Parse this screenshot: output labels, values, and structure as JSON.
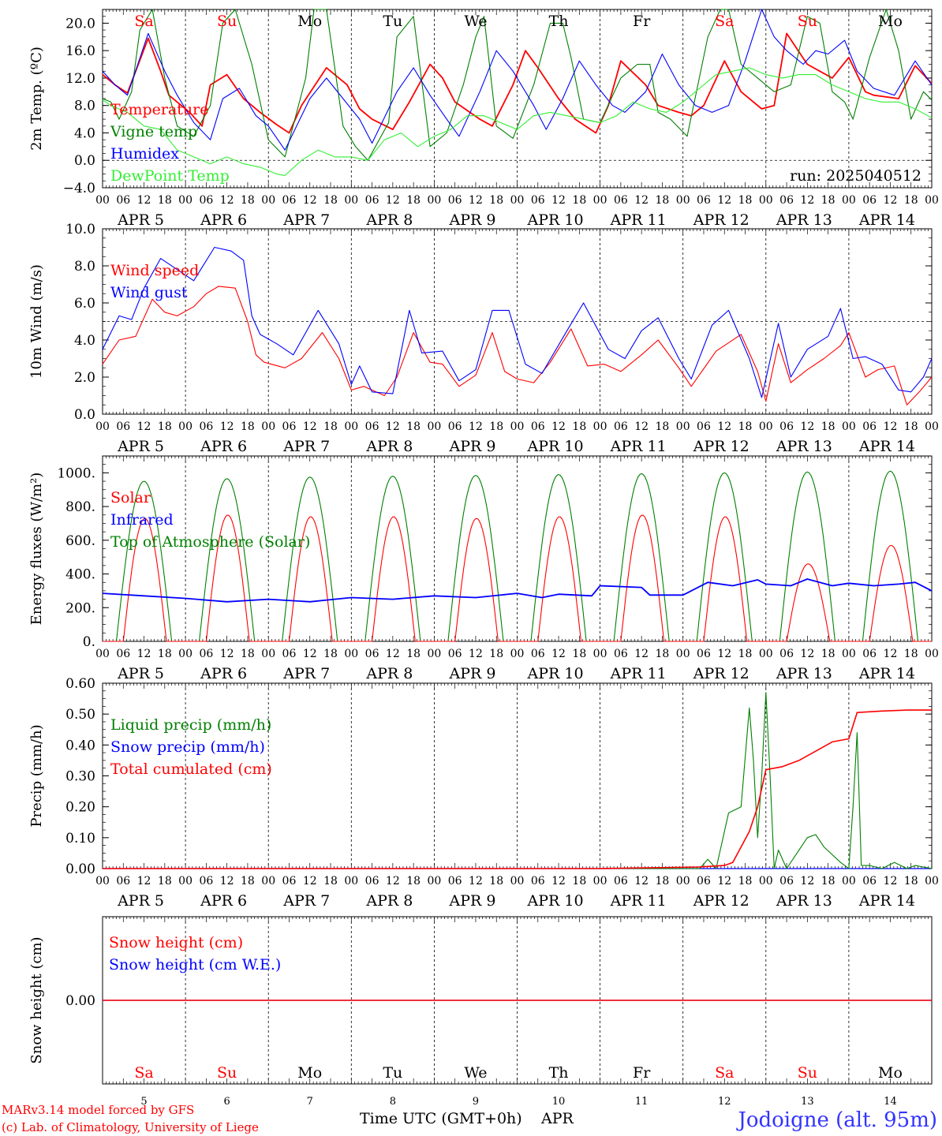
{
  "days": [
    "Sa",
    "Su",
    "Mo",
    "Tu",
    "We",
    "Th",
    "Fr",
    "Sa",
    "Su",
    "Mo"
  ],
  "weekend_flags": [
    true,
    true,
    false,
    false,
    false,
    false,
    false,
    true,
    true,
    false
  ],
  "dates": [
    "APR  5",
    "APR  6",
    "APR  7",
    "APR  8",
    "APR  9",
    "APR 10",
    "APR 11",
    "APR 12",
    "APR 13",
    "APR 14"
  ],
  "date_numbers": [
    "5",
    "6",
    "7",
    "8",
    "9",
    "10",
    "11",
    "12",
    "13",
    "14"
  ],
  "hour_labels": [
    "00",
    "06",
    "12",
    "18"
  ],
  "end_hour_label": "00",
  "run_label": "run: 2025040512",
  "bottom": {
    "model": "MARv3.14 model forced by GFS",
    "credit": "(c) Lab. of Climatology, University of Liege",
    "axis": "Time UTC (GMT+0h)",
    "month": "APR",
    "station": "Jodoigne (alt. 95m)"
  },
  "colors": {
    "red": "#ff0000",
    "green": "#008000",
    "blue": "#0000ff",
    "lightgreen": "#33ee33",
    "weekend": "#ff0000",
    "weekday": "#000000",
    "station": "#3333ff"
  },
  "chart_data": [
    {
      "type": "line",
      "ylabel": "2m Temp. (ºC)",
      "ylim": [
        -4,
        22
      ],
      "yticks": [
        "20.0",
        "16.0",
        "12.0",
        "8.0",
        "4.0",
        "0.0",
        "−4.0"
      ],
      "ytick_values": [
        20,
        16,
        12,
        8,
        4,
        0,
        -4
      ],
      "ref_line": 0,
      "x_days": [
        0,
        10
      ],
      "series": [
        {
          "name": "Temperature",
          "color": "red",
          "x": [
            0,
            0.15,
            0.3,
            0.55,
            0.7,
            0.8,
            1.05,
            1.2,
            1.3,
            1.5,
            1.7,
            1.9,
            2.1,
            2.25,
            2.4,
            2.7,
            2.95,
            3.1,
            3.25,
            3.5,
            3.7,
            3.95,
            4.1,
            4.25,
            4.55,
            4.7,
            4.95,
            5.1,
            5.25,
            5.5,
            5.7,
            5.95,
            6.1,
            6.25,
            6.55,
            6.7,
            6.95,
            7.1,
            7.25,
            7.5,
            7.7,
            7.95,
            8.1,
            8.25,
            8.5,
            8.8,
            9.0,
            9.2,
            9.3,
            9.6,
            9.8,
            10.0
          ],
          "y": [
            12.5,
            11,
            9.8,
            17.8,
            13,
            9.5,
            7,
            5,
            11,
            12.5,
            9,
            7,
            5.2,
            4,
            8,
            13.5,
            11,
            7.5,
            6,
            4.5,
            8.5,
            14,
            12,
            8.5,
            6,
            5,
            11,
            16,
            13.5,
            9,
            6,
            4,
            8,
            14.5,
            11,
            8,
            7,
            6.5,
            8,
            14.5,
            10,
            7.5,
            8,
            18.5,
            14,
            12,
            15,
            10,
            9.5,
            9,
            13.8,
            11.2
          ]
        },
        {
          "name": "Vigne temp",
          "color": "green",
          "x": [
            0,
            0.1,
            0.2,
            0.35,
            0.45,
            0.6,
            0.75,
            0.9,
            1.1,
            1.3,
            1.45,
            1.6,
            1.8,
            2.0,
            2.2,
            2.45,
            2.55,
            2.7,
            2.9,
            3.05,
            3.2,
            3.45,
            3.55,
            3.75,
            3.95,
            4.15,
            4.35,
            4.5,
            4.6,
            4.75,
            4.95,
            5.2,
            5.4,
            5.55,
            5.65,
            5.8,
            6.0,
            6.25,
            6.45,
            6.6,
            6.7,
            6.85,
            7.05,
            7.3,
            7.45,
            7.55,
            7.7,
            7.9,
            8.1,
            8.3,
            8.5,
            8.65,
            8.8,
            8.95,
            9.05,
            9.25,
            9.45,
            9.6,
            9.75,
            9.9,
            10.0
          ],
          "y": [
            9.0,
            8.5,
            6,
            10,
            19,
            22,
            12,
            5,
            3.5,
            8,
            20,
            24,
            14,
            3,
            0.5,
            12,
            22,
            26,
            5,
            2,
            0,
            5.5,
            18,
            21,
            2,
            4,
            11,
            18,
            21,
            5,
            3.2,
            11,
            20,
            20,
            15,
            6,
            5.5,
            12,
            14,
            14,
            7,
            6,
            3.5,
            18,
            23,
            24,
            14,
            12,
            10,
            11,
            21,
            20,
            10,
            8.5,
            6,
            15,
            22,
            16,
            6,
            10,
            8.8
          ]
        },
        {
          "name": "Humidex",
          "color": "blue",
          "x": [
            0,
            0.15,
            0.3,
            0.55,
            0.75,
            0.9,
            1.1,
            1.3,
            1.45,
            1.65,
            1.85,
            2.0,
            2.2,
            2.5,
            2.7,
            2.9,
            3.1,
            3.25,
            3.55,
            3.75,
            3.95,
            4.15,
            4.3,
            4.55,
            4.75,
            4.95,
            5.2,
            5.35,
            5.55,
            5.75,
            5.95,
            6.15,
            6.3,
            6.55,
            6.75,
            6.95,
            7.15,
            7.35,
            7.55,
            7.75,
            7.95,
            8.1,
            8.25,
            8.45,
            8.6,
            8.75,
            8.95,
            9.1,
            9.3,
            9.55,
            9.8,
            10.0
          ],
          "y": [
            13,
            11,
            9.5,
            18.5,
            13,
            9.5,
            5.5,
            3,
            9,
            10.5,
            6.5,
            5,
            1.5,
            9,
            12,
            9,
            6,
            2.5,
            10,
            13.5,
            9.5,
            6,
            3.5,
            10,
            16,
            13,
            8,
            4.5,
            9,
            14.5,
            11,
            8,
            7,
            10,
            15.5,
            11,
            8,
            7,
            8,
            14.5,
            22,
            18,
            16,
            14,
            16,
            15.5,
            17.5,
            13,
            10.5,
            9.5,
            14.5,
            11
          ]
        },
        {
          "name": "DewPoint Temp",
          "color": "lightgreen",
          "x": [
            0,
            0.1,
            0.3,
            0.5,
            0.7,
            0.9,
            1.1,
            1.3,
            1.5,
            1.7,
            1.9,
            2.1,
            2.2,
            2.4,
            2.6,
            2.8,
            3.0,
            3.2,
            3.4,
            3.6,
            3.8,
            4.0,
            4.2,
            4.4,
            4.6,
            4.8,
            5.0,
            5.2,
            5.4,
            5.6,
            5.8,
            6.0,
            6.2,
            6.4,
            6.6,
            6.8,
            7.0,
            7.2,
            7.4,
            7.6,
            7.8,
            8.0,
            8.2,
            8.4,
            8.6,
            8.8,
            9.0,
            9.2,
            9.4,
            9.6,
            9.8,
            10.0
          ],
          "y": [
            8.8,
            8.0,
            7.0,
            5.0,
            4.5,
            1.5,
            0.5,
            -0.5,
            0.5,
            -0.5,
            -1.0,
            -2.0,
            -2.2,
            0.0,
            1.5,
            0.5,
            0.5,
            0.0,
            3.0,
            4.0,
            2.0,
            3.5,
            4.5,
            6.5,
            6.5,
            5.5,
            4.5,
            6.5,
            7.0,
            6.5,
            6.0,
            5.5,
            6.5,
            8.5,
            7.5,
            7.0,
            8.5,
            10.5,
            12.5,
            13.0,
            13.5,
            12.5,
            12.0,
            12.5,
            12.5,
            11.0,
            10.0,
            9.0,
            8.5,
            8.5,
            7.5,
            6.2
          ]
        }
      ]
    },
    {
      "type": "line",
      "ylabel": "10m Wind (m/s)",
      "ylim": [
        0,
        10
      ],
      "yticks": [
        "10.0",
        "8.0",
        "6.0",
        "4.0",
        "2.0",
        "0.0"
      ],
      "ytick_values": [
        10,
        8,
        6,
        4,
        2,
        0
      ],
      "ref_line": 5,
      "x_days": [
        0,
        10
      ],
      "series": [
        {
          "name": "Wind speed",
          "color": "red",
          "x": [
            0,
            0.2,
            0.4,
            0.6,
            0.75,
            0.9,
            1.1,
            1.25,
            1.4,
            1.6,
            1.75,
            1.85,
            1.95,
            2.2,
            2.4,
            2.65,
            2.85,
            3.0,
            3.15,
            3.4,
            3.55,
            3.75,
            3.95,
            4.1,
            4.3,
            4.5,
            4.7,
            4.85,
            5.0,
            5.2,
            5.4,
            5.65,
            5.85,
            6.05,
            6.25,
            6.5,
            6.7,
            6.95,
            7.1,
            7.4,
            7.7,
            7.9,
            8.0,
            8.15,
            8.3,
            8.5,
            8.7,
            8.9,
            9.0,
            9.2,
            9.35,
            9.55,
            9.7,
            9.85,
            10.0
          ],
          "y": [
            2.7,
            4.0,
            4.2,
            6.2,
            5.5,
            5.3,
            5.8,
            6.5,
            6.9,
            6.8,
            5.0,
            3.2,
            2.8,
            2.5,
            3.0,
            4.4,
            3.0,
            1.3,
            1.5,
            1.0,
            2.0,
            4.4,
            2.8,
            2.7,
            1.5,
            2.1,
            4.4,
            2.3,
            1.9,
            1.7,
            2.8,
            4.6,
            2.6,
            2.7,
            2.3,
            3.2,
            4.0,
            2.5,
            1.5,
            3.4,
            4.3,
            2.3,
            0.7,
            3.8,
            1.7,
            2.4,
            3.0,
            3.7,
            4.4,
            2.0,
            2.4,
            2.6,
            0.5,
            1.2,
            2.0
          ]
        },
        {
          "name": "Wind gust",
          "color": "blue",
          "x": [
            0,
            0.2,
            0.35,
            0.5,
            0.7,
            0.9,
            1.1,
            1.35,
            1.55,
            1.7,
            1.8,
            1.9,
            2.1,
            2.3,
            2.6,
            2.85,
            3.0,
            3.1,
            3.25,
            3.5,
            3.7,
            3.85,
            4.1,
            4.3,
            4.5,
            4.7,
            4.9,
            5.1,
            5.3,
            5.6,
            5.8,
            6.1,
            6.3,
            6.5,
            6.7,
            6.95,
            7.1,
            7.35,
            7.55,
            7.8,
            7.95,
            8.15,
            8.3,
            8.5,
            8.75,
            8.9,
            9.05,
            9.2,
            9.4,
            9.6,
            9.75,
            9.9,
            10.0
          ],
          "y": [
            3.5,
            5.3,
            5.1,
            6.8,
            8.4,
            7.8,
            7.2,
            9.0,
            8.8,
            8.3,
            5.3,
            4.3,
            3.8,
            3.2,
            5.6,
            3.8,
            1.6,
            2.6,
            1.2,
            1.1,
            5.6,
            3.3,
            3.4,
            1.8,
            2.4,
            5.6,
            5.6,
            2.7,
            2.2,
            4.5,
            6.0,
            3.5,
            3.0,
            4.5,
            5.2,
            3.0,
            1.9,
            4.8,
            5.6,
            3.0,
            0.9,
            4.9,
            2.0,
            3.5,
            4.2,
            5.7,
            3.0,
            3.1,
            2.7,
            1.3,
            1.2,
            2.0,
            3.0
          ]
        }
      ]
    },
    {
      "type": "line",
      "ylabel": "Energy fluxes (W/m²)",
      "ylim": [
        0,
        1100
      ],
      "yticks": [
        "1000.",
        "800.",
        "600.",
        "400.",
        "200.",
        "0."
      ],
      "ytick_values": [
        1000,
        800,
        600,
        400,
        200,
        0
      ],
      "x_days": [
        0,
        10
      ],
      "series": [
        {
          "name": "Solar",
          "color": "red",
          "daily_peak": [
            730,
            750,
            740,
            740,
            730,
            740,
            750,
            740,
            460,
            570
          ]
        },
        {
          "name": "Infrared",
          "color": "blue",
          "x": [
            0,
            0.5,
            1.0,
            1.5,
            2.0,
            2.5,
            3.0,
            3.5,
            4.0,
            4.5,
            5.0,
            5.3,
            5.5,
            5.9,
            6.0,
            6.5,
            6.6,
            7.0,
            7.3,
            7.6,
            7.9,
            8.0,
            8.3,
            8.5,
            8.8,
            9.0,
            9.3,
            9.6,
            9.8,
            10.0
          ],
          "y": [
            285,
            270,
            255,
            235,
            250,
            235,
            260,
            250,
            270,
            260,
            285,
            260,
            280,
            270,
            330,
            320,
            275,
            275,
            350,
            330,
            365,
            340,
            330,
            370,
            330,
            345,
            330,
            340,
            350,
            300
          ]
        },
        {
          "name": "Top of Atmosphere (Solar)",
          "color": "green",
          "daily_peak": [
            950,
            965,
            975,
            980,
            985,
            990,
            995,
            1000,
            1005,
            1010
          ]
        }
      ]
    },
    {
      "type": "line",
      "ylabel": "Precip (mm/h)",
      "ylim": [
        0,
        0.6
      ],
      "yticks": [
        "0.60",
        "0.50",
        "0.40",
        "0.30",
        "0.20",
        "0.10",
        "0.00"
      ],
      "ytick_values": [
        0.6,
        0.5,
        0.4,
        0.3,
        0.2,
        0.1,
        0
      ],
      "x_days": [
        0,
        10
      ],
      "series": [
        {
          "name": "Liquid precip (mm/h)",
          "color": "green",
          "x": [
            0,
            7.2,
            7.3,
            7.4,
            7.55,
            7.7,
            7.8,
            7.85,
            7.9,
            7.95,
            8.0,
            8.05,
            8.1,
            8.15,
            8.25,
            8.35,
            8.5,
            8.6,
            8.7,
            8.9,
            9.0,
            9.05,
            9.1,
            9.15,
            9.25,
            9.4,
            9.55,
            9.7,
            9.8,
            10.0
          ],
          "y": [
            0,
            0,
            0.03,
            0.0,
            0.18,
            0.2,
            0.52,
            0.35,
            0.1,
            0.3,
            0.57,
            0.3,
            0.0,
            0.06,
            0.0,
            0.04,
            0.1,
            0.11,
            0.07,
            0.02,
            0.0,
            0.2,
            0.44,
            0.01,
            0.01,
            0.0,
            0.02,
            0.0,
            0.01,
            0.0
          ]
        },
        {
          "name": "Snow precip (mm/h)",
          "color": "blue",
          "x": [
            0,
            10
          ],
          "y": [
            0,
            0
          ]
        },
        {
          "name": "Total cumulated (cm)",
          "color": "red",
          "x": [
            0,
            6.0,
            7.2,
            7.5,
            7.6,
            7.8,
            7.9,
            8.0,
            8.2,
            8.4,
            8.6,
            8.8,
            9.0,
            9.1,
            9.4,
            9.7,
            10.0
          ],
          "y": [
            0,
            0,
            0.005,
            0.01,
            0.02,
            0.12,
            0.2,
            0.32,
            0.33,
            0.35,
            0.38,
            0.41,
            0.42,
            0.505,
            0.51,
            0.513,
            0.513
          ]
        }
      ]
    },
    {
      "type": "line",
      "ylabel": "Snow height (cm)",
      "ylim": [
        -1,
        1
      ],
      "yticks": [
        "0.00"
      ],
      "ytick_values": [
        0
      ],
      "x_days": [
        0,
        10
      ],
      "series": [
        {
          "name": "Snow height (cm)",
          "color": "red",
          "x": [
            0,
            10
          ],
          "y": [
            0,
            0
          ]
        },
        {
          "name": "Snow height (cm W.E.)",
          "color": "blue",
          "x": [
            0,
            10
          ],
          "y": [
            0,
            0
          ]
        }
      ]
    }
  ]
}
